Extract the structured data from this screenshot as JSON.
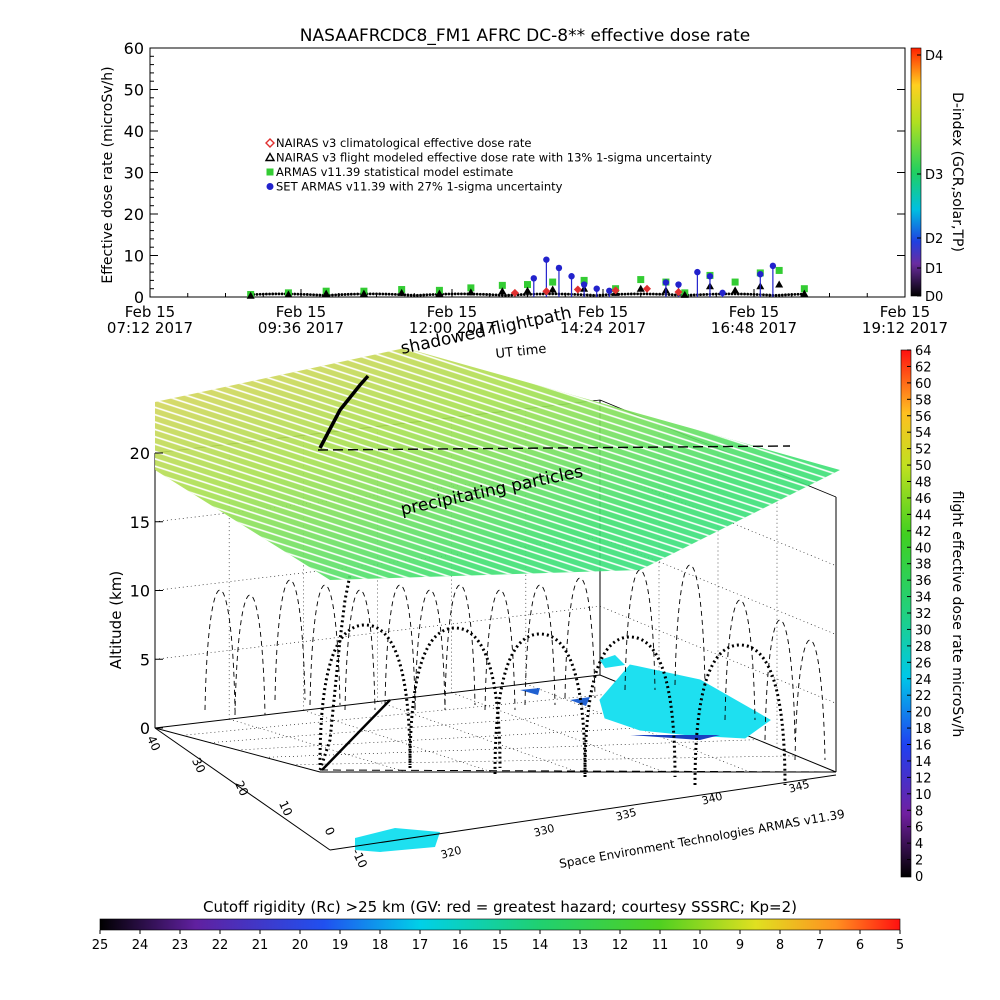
{
  "chart_data": [
    {
      "type": "scatter",
      "title": "NASAAFRCDC8_FM1 AFRC DC-8** effective dose rate",
      "ylabel": "Effective dose rate (microSv/h)",
      "xlabel": "UT time",
      "ylim": [
        0,
        60
      ],
      "y_ticks": [
        "0",
        "10",
        "20",
        "30",
        "40",
        "50",
        "60"
      ],
      "x_tick_labels": [
        {
          "day": "Feb 15",
          "time": "07:12 2017"
        },
        {
          "day": "Feb 15",
          "time": "09:36 2017"
        },
        {
          "day": "Feb 15",
          "time": "12:00 2017"
        },
        {
          "day": "Feb 15",
          "time": "14:24 2017"
        },
        {
          "day": "Feb 15",
          "time": "16:48 2017"
        },
        {
          "day": "Feb 15",
          "time": "19:12 2017"
        }
      ],
      "x_hours_range": [
        7.2,
        19.2
      ],
      "legend": [
        {
          "label": "NAIRAS v3 climatological effective dose rate",
          "symbol": "diamond",
          "color": "#e03030"
        },
        {
          "label": "NAIRAS v3 flight modeled effective dose rate with 13% 1-sigma uncertainty",
          "symbol": "triangle",
          "color": "#000000"
        },
        {
          "label": "ARMAS v11.39 statistical model estimate",
          "symbol": "square",
          "color": "#33cc33"
        },
        {
          "label": "SET ARMAS v11.39 with 27% 1-sigma uncertainty",
          "symbol": "circle",
          "color": "#2222cc"
        }
      ],
      "legend_position": "upper-left",
      "series": [
        {
          "name": "ARMAS v11.39 statistical model estimate",
          "color": "#33cc33",
          "x": [
            8.8,
            9.4,
            10.0,
            10.6,
            11.2,
            11.8,
            12.3,
            12.8,
            13.2,
            13.6,
            14.1,
            14.6,
            15.0,
            15.4,
            15.7,
            16.1,
            16.5,
            16.9,
            17.2,
            17.6
          ],
          "y": [
            0.6,
            1.0,
            1.4,
            1.4,
            1.8,
            1.6,
            2.2,
            2.8,
            3.0,
            3.6,
            4.0,
            2.0,
            4.2,
            3.6,
            1.0,
            5.2,
            3.6,
            5.8,
            6.4,
            2.0
          ]
        },
        {
          "name": "NAIRAS v3 flight modeled effective dose rate with 13% 1-sigma uncertainty",
          "color": "#000000",
          "x": [
            8.8,
            9.4,
            10.0,
            10.6,
            11.2,
            11.8,
            12.3,
            12.8,
            13.2,
            13.6,
            14.1,
            14.6,
            15.0,
            15.4,
            15.7,
            16.1,
            16.5,
            16.9,
            17.2,
            17.6
          ],
          "y": [
            0.3,
            0.6,
            0.8,
            0.8,
            1.0,
            0.8,
            1.1,
            1.4,
            1.5,
            1.8,
            2.0,
            1.0,
            2.0,
            1.6,
            0.5,
            2.6,
            1.6,
            2.6,
            3.0,
            0.8
          ]
        },
        {
          "name": "SET ARMAS v11.39 with 27% 1-sigma uncertainty",
          "color": "#2222cc",
          "x": [
            13.3,
            13.5,
            13.7,
            13.9,
            14.1,
            14.3,
            14.5,
            15.4,
            15.6,
            15.9,
            16.1,
            16.3,
            16.9,
            17.1
          ],
          "y": [
            4.5,
            9.0,
            7.0,
            5.0,
            3.0,
            2.0,
            1.5,
            3.5,
            3.0,
            6.0,
            5.0,
            1.0,
            5.5,
            7.5
          ]
        },
        {
          "name": "NAIRAS v3 climatological effective dose rate",
          "color": "#e03030",
          "x": [
            13.0,
            13.5,
            14.0,
            14.6,
            15.1,
            15.6
          ],
          "y": [
            1.0,
            1.4,
            1.8,
            1.6,
            2.0,
            1.2
          ]
        }
      ],
      "colorbar_right": {
        "label": "D-index (GCR,solar,TP)",
        "ticks": [
          "D0",
          "D1",
          "D2",
          "D3",
          "D4"
        ]
      }
    },
    {
      "type": "scatter",
      "title": "",
      "zlabel": "Altitude (km)",
      "z_ticks": [
        "0",
        "5",
        "10",
        "15",
        "20"
      ],
      "zlim": [
        0,
        22
      ],
      "lat_ticks": [
        "40",
        "30",
        "20",
        "10",
        "0",
        "-10"
      ],
      "lon_ticks": [
        "320",
        "330",
        "335",
        "340",
        "345"
      ],
      "annotations": [
        "shadowed flightpath",
        "UT time",
        "precipitating particles"
      ],
      "credit": "Space Environment Technologies ARMAS v11.39",
      "colorbar_right": {
        "label": "flight effective dose rate microSv/h",
        "ticks": [
          "0",
          "2",
          "4",
          "6",
          "8",
          "10",
          "12",
          "14",
          "16",
          "18",
          "20",
          "22",
          "24",
          "26",
          "28",
          "30",
          "32",
          "34",
          "36",
          "38",
          "40",
          "42",
          "44",
          "46",
          "48",
          "50",
          "52",
          "54",
          "56",
          "58",
          "60",
          "62",
          "64"
        ]
      },
      "colorbar_bottom": {
        "label": "Cutoff rigidity (Rc) >25 km (GV: red = greatest hazard; courtesy SSSRC; Kp=2)",
        "ticks": [
          "25",
          "24",
          "23",
          "22",
          "21",
          "20",
          "19",
          "18",
          "17",
          "16",
          "15",
          "14",
          "13",
          "12",
          "11",
          "10",
          "9",
          "8",
          "7",
          "6",
          "5"
        ]
      }
    }
  ]
}
